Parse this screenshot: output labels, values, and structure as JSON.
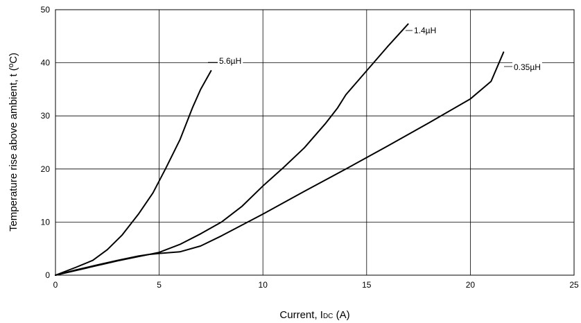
{
  "chart_data": {
    "type": "line",
    "xlabel": "Current, I",
    "xlabel_subscript": "DC",
    "xlabel_unit": " (A)",
    "ylabel": "Temperature rise above ambient, t (ºC)",
    "xlim": [
      0,
      25
    ],
    "ylim": [
      0,
      50
    ],
    "xticks": [
      0,
      5,
      10,
      15,
      20,
      25
    ],
    "yticks": [
      0,
      10,
      20,
      30,
      40,
      50
    ],
    "grid": true,
    "series": [
      {
        "name": "5.6µH",
        "x": [
          0,
          1,
          1.8,
          2.5,
          3.2,
          4.0,
          4.7,
          5.3,
          6.0,
          6.6,
          7.0,
          7.5
        ],
        "y": [
          0,
          1.5,
          2.8,
          4.8,
          7.5,
          11.5,
          15.5,
          20.0,
          25.5,
          31.5,
          35.0,
          38.5
        ]
      },
      {
        "name": "1.4µH",
        "x": [
          0,
          1,
          2,
          3,
          4,
          5,
          6,
          7,
          8,
          9,
          10,
          11,
          12,
          13,
          13.6,
          14.0,
          15.0,
          16.0,
          17.0
        ],
        "y": [
          0,
          0.9,
          1.8,
          2.7,
          3.5,
          4.3,
          5.8,
          7.8,
          10.0,
          13.0,
          16.8,
          20.3,
          24.0,
          28.5,
          31.5,
          34.0,
          38.5,
          43.0,
          47.3
        ]
      },
      {
        "name": "0.35µH",
        "x": [
          0,
          1,
          2,
          3,
          4,
          4.5,
          5,
          6,
          7,
          8,
          10,
          12,
          14,
          16,
          18,
          20,
          21,
          21.6
        ],
        "y": [
          0,
          1.0,
          1.9,
          2.8,
          3.6,
          3.9,
          4.1,
          4.4,
          5.5,
          7.4,
          11.5,
          15.8,
          20.0,
          24.3,
          28.7,
          33.2,
          36.5,
          42.0
        ]
      }
    ]
  }
}
